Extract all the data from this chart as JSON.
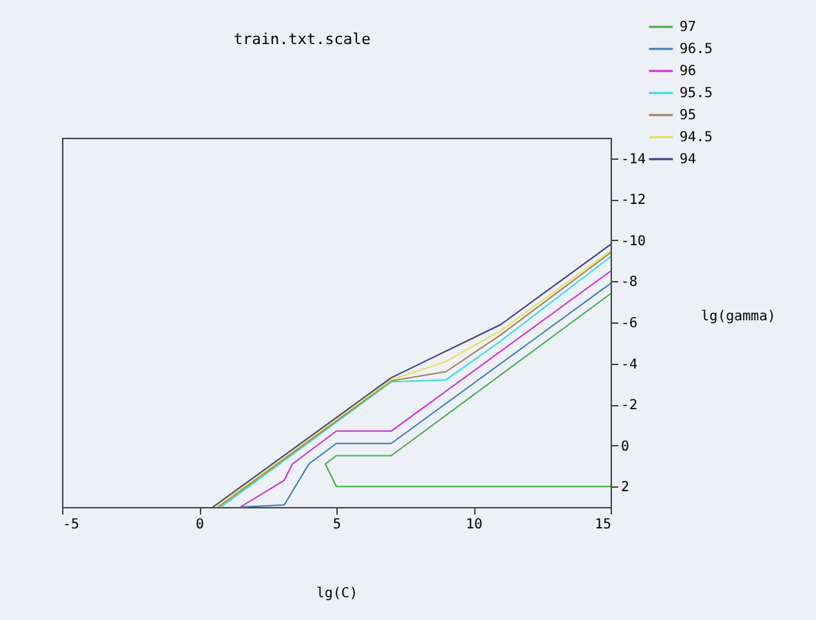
{
  "chart_data": {
    "type": "line",
    "title": "train.txt.scale",
    "xlabel": "lg(C)",
    "ylabel": "lg(gamma)",
    "xlim": [
      -5,
      15
    ],
    "ylim": [
      3,
      -15
    ],
    "xticks": [
      -5,
      0,
      5,
      10,
      15
    ],
    "yticks": [
      -14,
      -12,
      -10,
      -8,
      -6,
      -4,
      -2,
      0,
      2
    ],
    "grid": false,
    "legend": "top right",
    "series": [
      {
        "name": "97",
        "color": "#44b044",
        "x": [
          15,
          7,
          5,
          4.6,
          5,
          15
        ],
        "values": [
          -7.4,
          0.5,
          0.5,
          0.9,
          2,
          2
        ]
      },
      {
        "name": "96.5",
        "color": "#3a80b0",
        "x": [
          15,
          7,
          5,
          4,
          3.1,
          1.5
        ],
        "values": [
          -7.9,
          -0.1,
          -0.1,
          0.9,
          2.9,
          3
        ]
      },
      {
        "name": "96",
        "color": "#cc33cc",
        "x": [
          15,
          7,
          5,
          3.4,
          3.1,
          1.5
        ],
        "values": [
          -8.5,
          -0.7,
          -0.7,
          0.9,
          1.7,
          3
        ]
      },
      {
        "name": "95.5",
        "color": "#33dddd",
        "x": [
          15,
          11,
          9,
          7,
          0.8
        ],
        "values": [
          -9.2,
          -5.1,
          -3.2,
          -3.1,
          3
        ]
      },
      {
        "name": "95",
        "color": "#a0805a",
        "x": [
          15,
          11,
          9,
          7,
          0.7
        ],
        "values": [
          -9.4,
          -5.4,
          -3.6,
          -3.15,
          3
        ]
      },
      {
        "name": "94.5",
        "color": "#e8e050",
        "x": [
          15,
          11,
          9,
          7,
          0.6
        ],
        "values": [
          -9.5,
          -5.6,
          -4.1,
          -3.2,
          3
        ]
      },
      {
        "name": "94",
        "color": "#404080",
        "x": [
          15,
          11,
          9,
          7,
          0.5
        ],
        "values": [
          -9.8,
          -5.9,
          -4.6,
          -3.3,
          3
        ]
      }
    ]
  }
}
